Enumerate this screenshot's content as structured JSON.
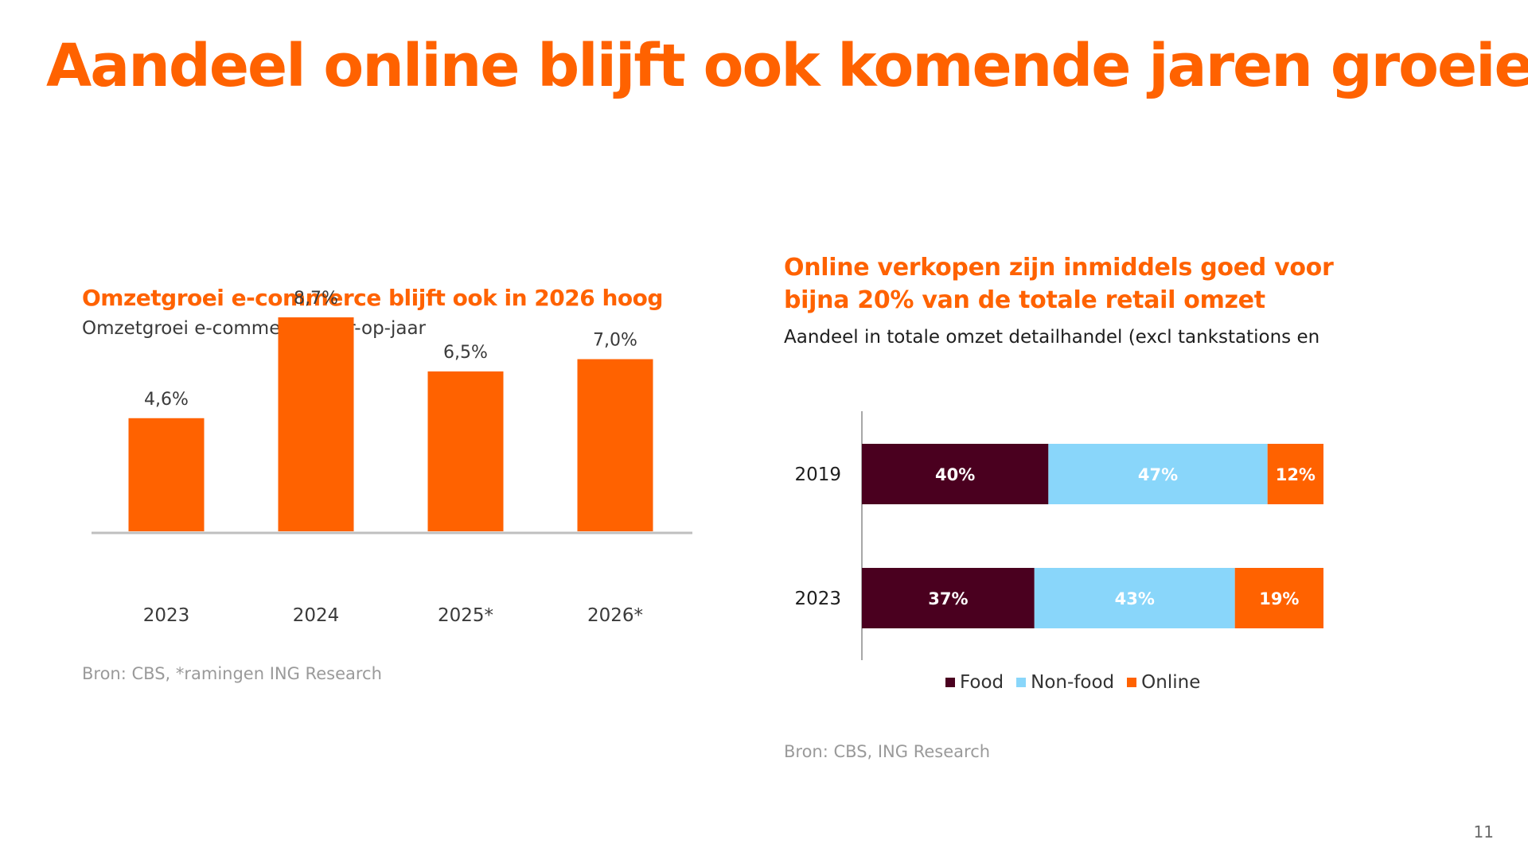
{
  "slide": {
    "title": "Aandeel online blijft ook komende jaren groeien",
    "page_number": "11"
  },
  "left_chart_text": {
    "title": "Omzetgroei e-commerce blijft ook in 2026 hoog",
    "subtitle": "Omzetgroei e-commerce, jaar-op-jaar",
    "source": "Bron: CBS, *ramingen ING Research"
  },
  "right_chart_text": {
    "title": "Online verkopen zijn inmiddels goed voor bijna 20% van de totale retail omzet",
    "subtitle": "Aandeel in totale omzet detailhandel (excl tankstations en",
    "source": "Bron: CBS, ING Research"
  },
  "colors": {
    "orange": "#ff6200",
    "food": "#4a001f",
    "nonfood": "#89d6fa",
    "online": "#ff6200",
    "axis": "#bfbfbf"
  },
  "chart_data": [
    {
      "type": "bar",
      "title": "Omzetgroei e-commerce blijft ook in 2026 hoog",
      "subtitle": "Omzetgroei e-commerce, jaar-op-jaar",
      "categories": [
        "2023",
        "2024",
        "2025*",
        "2026*"
      ],
      "values": [
        4.6,
        8.7,
        6.5,
        7.0
      ],
      "data_labels": [
        "4,6%",
        "8,7%",
        "6,5%",
        "7,0%"
      ],
      "ylim": [
        0,
        10
      ],
      "xlabel": "",
      "ylabel": "",
      "grid": false
    },
    {
      "type": "bar",
      "orientation": "horizontal",
      "stacked": true,
      "title": "Online verkopen zijn inmiddels goed voor bijna 20% van de totale retail omzet",
      "categories": [
        "2019",
        "2023"
      ],
      "series": [
        {
          "name": "Food",
          "values": [
            40,
            37
          ],
          "labels": [
            "40%",
            "37%"
          ]
        },
        {
          "name": "Non-food",
          "values": [
            47,
            43
          ],
          "labels": [
            "47%",
            "43%"
          ]
        },
        {
          "name": "Online",
          "values": [
            12,
            19
          ],
          "labels": [
            "12%",
            "19%"
          ]
        }
      ],
      "xlim": [
        0,
        100
      ],
      "legend": "bottom",
      "grid": false
    }
  ]
}
